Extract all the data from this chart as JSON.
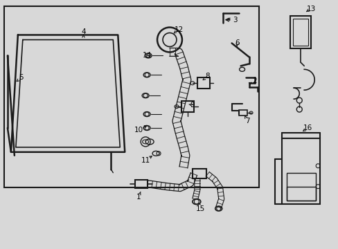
{
  "bg_color": "#d8d8d8",
  "line_color": "#1a1a1a",
  "text_color": "#000000",
  "fig_width": 4.89,
  "fig_height": 3.6,
  "dpi": 100
}
